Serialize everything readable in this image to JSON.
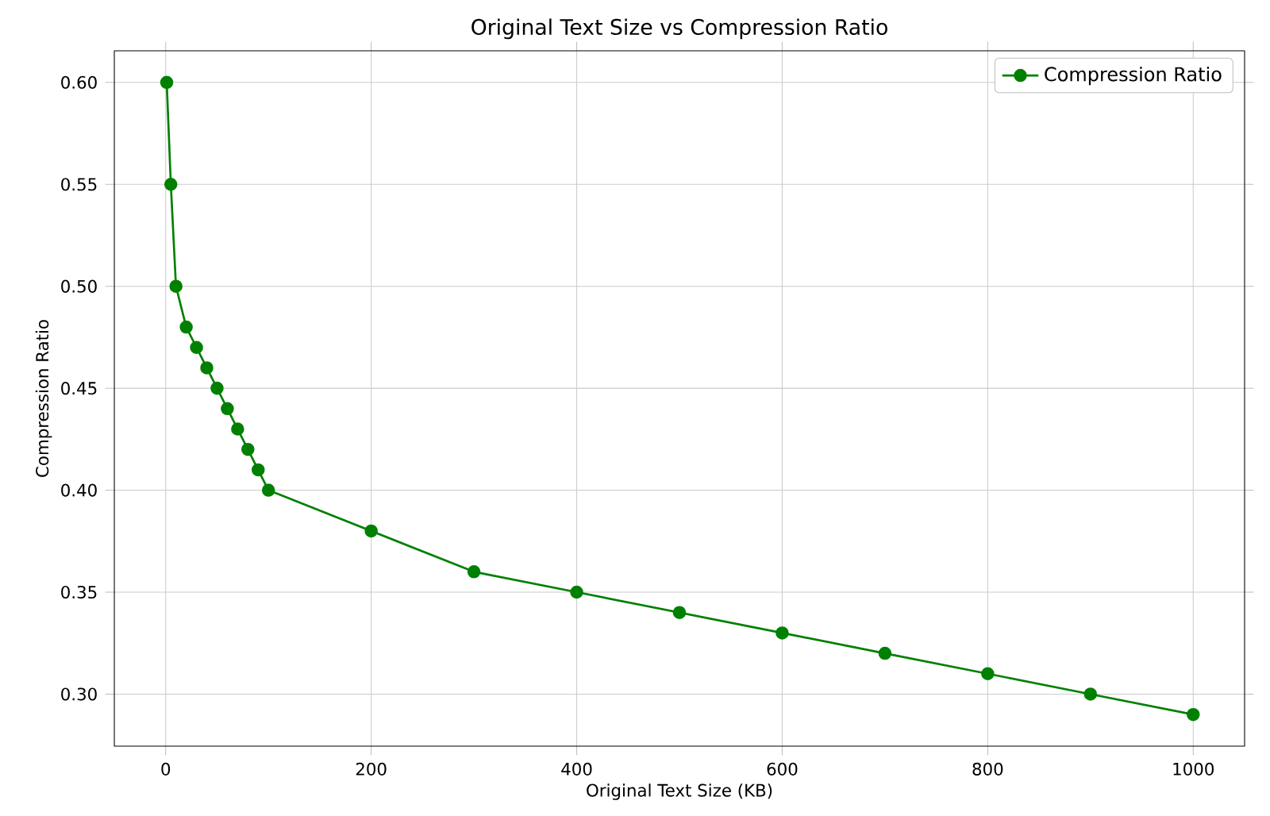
{
  "chart_data": {
    "type": "line",
    "title": "Original Text Size vs Compression Ratio",
    "xlabel": "Original Text Size (KB)",
    "ylabel": "Compression Ratio",
    "x": [
      1,
      5,
      10,
      20,
      30,
      40,
      50,
      60,
      70,
      80,
      90,
      100,
      200,
      300,
      400,
      500,
      600,
      700,
      800,
      900,
      1000
    ],
    "series": [
      {
        "name": "Compression Ratio",
        "color": "#008000",
        "values": [
          0.6,
          0.55,
          0.5,
          0.48,
          0.47,
          0.46,
          0.45,
          0.44,
          0.43,
          0.42,
          0.41,
          0.4,
          0.38,
          0.36,
          0.35,
          0.34,
          0.33,
          0.32,
          0.31,
          0.3,
          0.29
        ]
      }
    ],
    "xlim": [
      -50,
      1050
    ],
    "ylim": [
      0.2745,
      0.6155
    ],
    "xticks": [
      0,
      200,
      400,
      600,
      800,
      1000
    ],
    "yticks": [
      {
        "value": 0.3,
        "label": "0.30"
      },
      {
        "value": 0.35,
        "label": "0.35"
      },
      {
        "value": 0.4,
        "label": "0.40"
      },
      {
        "value": 0.45,
        "label": "0.45"
      },
      {
        "value": 0.5,
        "label": "0.50"
      },
      {
        "value": 0.55,
        "label": "0.55"
      },
      {
        "value": 0.6,
        "label": "0.60"
      }
    ],
    "grid": true,
    "legend": "top right",
    "marker": "circle",
    "line_style": "solid"
  }
}
